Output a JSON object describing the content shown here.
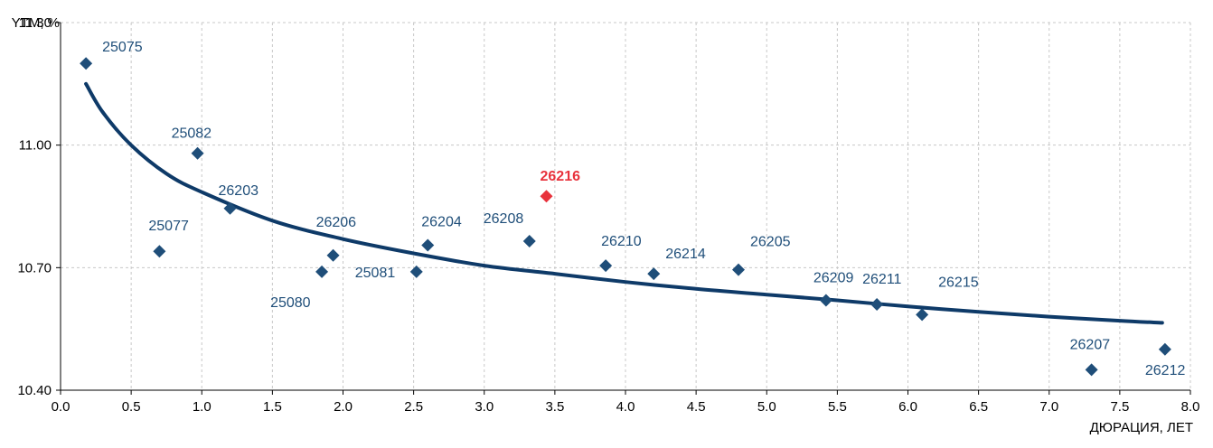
{
  "chart_data": {
    "type": "scatter",
    "title": "",
    "xlabel": "ДЮРАЦИЯ, ЛЕТ",
    "ylabel": "YTM, %",
    "xlim": [
      0,
      8
    ],
    "ylim": [
      10.4,
      11.3
    ],
    "x_ticks": [
      "0.0",
      "0.5",
      "1.0",
      "1.5",
      "2.0",
      "2.5",
      "3.0",
      "3.5",
      "4.0",
      "4.5",
      "5.0",
      "5.5",
      "6.0",
      "6.5",
      "7.0",
      "7.5",
      "8.0"
    ],
    "y_ticks": [
      "10.40",
      "10.70",
      "11.00",
      "11.30"
    ],
    "grid": true,
    "colors": {
      "points": "#1f4e79",
      "highlight": "#e8323c",
      "curve": "#0e3a68",
      "grid": "#c8c8c8",
      "axis": "#000000"
    },
    "points": [
      {
        "label": "25075",
        "x": 0.18,
        "y": 11.2,
        "highlight": false
      },
      {
        "label": "25077",
        "x": 0.7,
        "y": 10.74,
        "highlight": false
      },
      {
        "label": "25082",
        "x": 0.97,
        "y": 10.98,
        "highlight": false
      },
      {
        "label": "26203",
        "x": 1.2,
        "y": 10.845,
        "highlight": false
      },
      {
        "label": "25080",
        "x": 1.85,
        "y": 10.69,
        "highlight": false
      },
      {
        "label": "26206",
        "x": 1.93,
        "y": 10.73,
        "highlight": false
      },
      {
        "label": "25081",
        "x": 2.52,
        "y": 10.69,
        "highlight": false
      },
      {
        "label": "26204",
        "x": 2.6,
        "y": 10.755,
        "highlight": false
      },
      {
        "label": "26208",
        "x": 3.32,
        "y": 10.765,
        "highlight": false
      },
      {
        "label": "26216",
        "x": 3.44,
        "y": 10.875,
        "highlight": true
      },
      {
        "label": "26210",
        "x": 3.86,
        "y": 10.705,
        "highlight": false
      },
      {
        "label": "26214",
        "x": 4.2,
        "y": 10.685,
        "highlight": false
      },
      {
        "label": "26205",
        "x": 4.8,
        "y": 10.695,
        "highlight": false
      },
      {
        "label": "26209",
        "x": 5.42,
        "y": 10.62,
        "highlight": false
      },
      {
        "label": "26211",
        "x": 5.78,
        "y": 10.61,
        "highlight": false
      },
      {
        "label": "26215",
        "x": 6.1,
        "y": 10.585,
        "highlight": false
      },
      {
        "label": "26207",
        "x": 7.3,
        "y": 10.45,
        "highlight": false
      },
      {
        "label": "26212",
        "x": 7.82,
        "y": 10.5,
        "highlight": false
      }
    ],
    "trend_curve": [
      {
        "x": 0.18,
        "y": 11.15
      },
      {
        "x": 0.3,
        "y": 11.08
      },
      {
        "x": 0.5,
        "y": 11.0
      },
      {
        "x": 0.75,
        "y": 10.93
      },
      {
        "x": 1.0,
        "y": 10.885
      },
      {
        "x": 1.5,
        "y": 10.815
      },
      {
        "x": 2.0,
        "y": 10.77
      },
      {
        "x": 2.5,
        "y": 10.735
      },
      {
        "x": 3.0,
        "y": 10.705
      },
      {
        "x": 3.5,
        "y": 10.685
      },
      {
        "x": 4.0,
        "y": 10.665
      },
      {
        "x": 4.5,
        "y": 10.648
      },
      {
        "x": 5.0,
        "y": 10.634
      },
      {
        "x": 5.5,
        "y": 10.62
      },
      {
        "x": 6.0,
        "y": 10.605
      },
      {
        "x": 6.5,
        "y": 10.592
      },
      {
        "x": 7.0,
        "y": 10.58
      },
      {
        "x": 7.5,
        "y": 10.57
      },
      {
        "x": 7.8,
        "y": 10.565
      }
    ]
  }
}
